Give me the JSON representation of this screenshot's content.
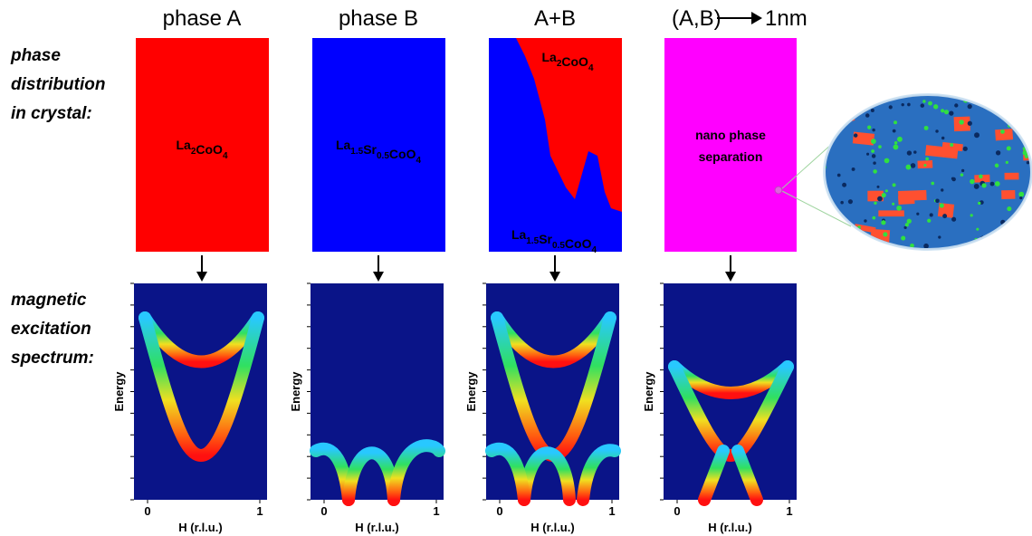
{
  "columns": [
    {
      "title": "phase A"
    },
    {
      "title": "phase B"
    },
    {
      "title": "A+B"
    },
    {
      "title": "(A,B)",
      "title_suffix": "1nm"
    }
  ],
  "row_labels": {
    "phase": [
      "phase",
      "distribution",
      "in crystal:"
    ],
    "spectrum": [
      "magnetic",
      "excitation",
      "spectrum:"
    ]
  },
  "panels": {
    "phase_a_label": [
      {
        "base": "La",
        "sub": "2"
      },
      {
        "base": "CoO",
        "sub": "4"
      }
    ],
    "phase_b_label": [
      {
        "base": "La",
        "sub": "1.5"
      },
      {
        "base": "Sr",
        "sub": "0.5"
      },
      {
        "base": "CoO",
        "sub": "4"
      }
    ],
    "mix_top_label": [
      {
        "base": "La",
        "sub": "2"
      },
      {
        "base": "CoO",
        "sub": "4"
      }
    ],
    "mix_bottom_label": [
      {
        "base": "La",
        "sub": "1.5"
      },
      {
        "base": "Sr",
        "sub": "0.5"
      },
      {
        "base": "CoO",
        "sub": "4"
      }
    ],
    "nano_label": [
      "nano phase",
      "separation"
    ]
  },
  "axes": {
    "y_label": "Energy",
    "x_label": "H (r.l.u.)",
    "x_ticks": [
      "0",
      "1"
    ]
  }
}
